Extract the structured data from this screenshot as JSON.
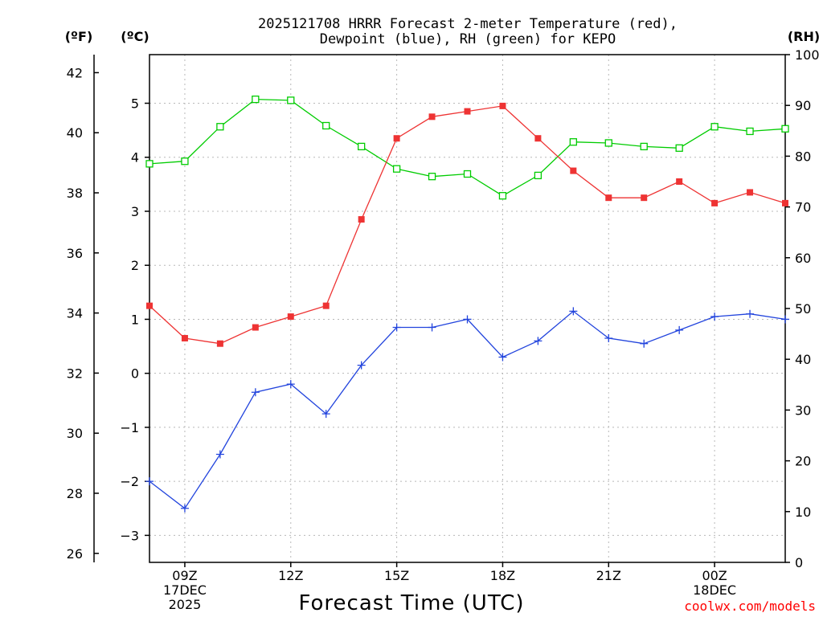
{
  "chart_data": {
    "type": "line",
    "title_line1": "2025121708 HRRR Forecast 2-meter Temperature (red),",
    "title_line2": "Dewpoint (blue), RH (green) for KEPO",
    "xlabel": "Forecast Time (UTC)",
    "credit": "coolwx.com/models",
    "units": {
      "fahrenheit": "(ºF)",
      "celsius": "(ºC)",
      "rh": "(RH)"
    },
    "x": [
      8,
      9,
      10,
      11,
      12,
      13,
      14,
      15,
      16,
      17,
      18,
      19,
      20,
      21,
      22,
      23,
      24,
      25,
      26
    ],
    "xlim": [
      8,
      26
    ],
    "xticks": [
      {
        "x": 9,
        "lines": [
          "09Z",
          "17DEC",
          "2025"
        ]
      },
      {
        "x": 12,
        "lines": [
          "12Z"
        ]
      },
      {
        "x": 15,
        "lines": [
          "15Z"
        ]
      },
      {
        "x": 18,
        "lines": [
          "18Z"
        ]
      },
      {
        "x": 21,
        "lines": [
          "21Z"
        ]
      },
      {
        "x": 24,
        "lines": [
          "00Z",
          "18DEC"
        ]
      }
    ],
    "celsius_axis": {
      "ylim": [
        -3.5,
        5.9
      ],
      "ticks": [
        -3,
        -2,
        -1,
        0,
        1,
        2,
        3,
        4,
        5
      ]
    },
    "fahrenheit_axis": {
      "ylim": [
        25.7,
        42.6
      ],
      "ticks": [
        26,
        28,
        30,
        32,
        34,
        36,
        38,
        40,
        42
      ]
    },
    "rh_axis": {
      "ylim": [
        0,
        100
      ],
      "ticks": [
        0,
        10,
        20,
        30,
        40,
        50,
        60,
        70,
        80,
        90,
        100
      ]
    },
    "series": [
      {
        "name": "Temperature",
        "axis": "celsius",
        "color": "#ee3333",
        "marker": "filled-square",
        "values": [
          1.25,
          0.65,
          0.55,
          0.85,
          1.05,
          1.25,
          2.85,
          4.35,
          4.75,
          4.85,
          4.95,
          4.35,
          3.75,
          3.25,
          3.25,
          3.55,
          3.15,
          3.35,
          3.15
        ]
      },
      {
        "name": "Dewpoint",
        "axis": "celsius",
        "color": "#2244dd",
        "marker": "plus",
        "values": [
          -2.0,
          -2.5,
          -1.5,
          -0.35,
          -0.2,
          -0.75,
          0.15,
          0.85,
          0.85,
          1.0,
          0.3,
          0.6,
          1.15,
          0.65,
          0.55,
          0.8,
          1.05,
          1.1,
          1.0
        ]
      },
      {
        "name": "RH",
        "axis": "rh",
        "color": "#00cc00",
        "marker": "open-square",
        "values": [
          78.5,
          79.0,
          85.8,
          91.2,
          91.0,
          86.0,
          81.9,
          77.5,
          76.0,
          76.5,
          72.2,
          76.2,
          82.8,
          82.6,
          81.9,
          81.6,
          85.8,
          84.9,
          85.4
        ]
      }
    ]
  }
}
